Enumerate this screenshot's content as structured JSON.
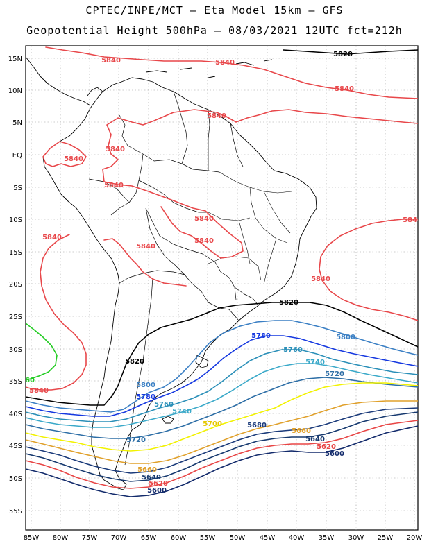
{
  "title_line1": "CPTEC/INPE/MCT –  Eta Model 15km – GFS",
  "title_line2": "Geopotential Height 500hPa – 08/03/2021 12UTC fct=212h",
  "axes": {
    "lat_labels": [
      "15N",
      "10N",
      "5N",
      "EQ",
      "5S",
      "10S",
      "15S",
      "20S",
      "25S",
      "30S",
      "35S",
      "40S",
      "45S",
      "50S",
      "55S"
    ],
    "lon_labels": [
      "85W",
      "80W",
      "75W",
      "70W",
      "65W",
      "60W",
      "55W",
      "50W",
      "45W",
      "40W",
      "35W",
      "30W",
      "25W",
      "20W"
    ]
  },
  "colors": {
    "c5840": "#e8474a",
    "c5820": "#000000",
    "c5800": "#3a7fc4",
    "c5780": "#1538e0",
    "c5760": "#2a8fb8",
    "c5740": "#3aa9c9",
    "c5720": "#2d6ea6",
    "c5700": "#f2f200",
    "c5680": "#e0a02a",
    "c5660": "#1a3a7a",
    "c5640": "#15386e",
    "c5620": "#e84545",
    "c5600": "#122a6b",
    "c5860": "#22cc22",
    "border": "#000000"
  },
  "contour_labels": {
    "l5840": "5840",
    "l5820": "5820",
    "l5800": "5800",
    "l5780": "5780",
    "l5760": "5760",
    "l5740": "5740",
    "l5720": "5720",
    "l5700": "5700",
    "l5680": "5680",
    "l5660": "5660",
    "l5640": "5640",
    "l5620": "5620",
    "l5600": "5600",
    "l60": "60"
  }
}
